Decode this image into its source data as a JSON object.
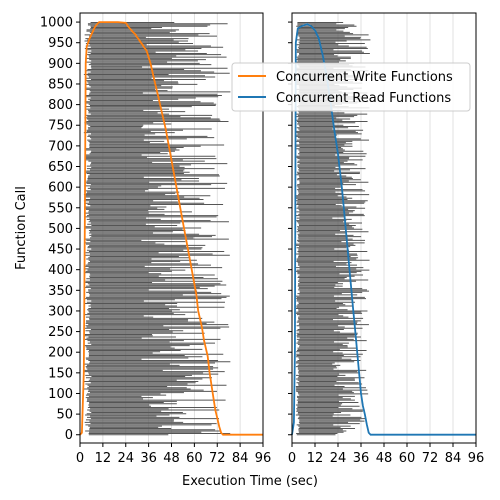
{
  "chart_data": [
    {
      "type": "line",
      "panel": "left",
      "xlabel": "Execution Time (sec)",
      "ylabel": "Function Call",
      "xlim": [
        0,
        96
      ],
      "ylim": [
        -20,
        1022
      ],
      "xticks": [
        0,
        12,
        24,
        36,
        48,
        60,
        72,
        84,
        96
      ],
      "yticks": [
        0,
        50,
        100,
        150,
        200,
        250,
        300,
        350,
        400,
        450,
        500,
        550,
        600,
        650,
        700,
        750,
        800,
        850,
        900,
        950,
        1000
      ],
      "grid": "vertical",
      "background_bars": {
        "description": "horizontal gray bars per function call",
        "color": "#555555",
        "start_time_range": [
          2,
          6
        ],
        "end_time_range": [
          32,
          79
        ],
        "count": 1000
      },
      "series": [
        {
          "name": "Concurrent Write Functions",
          "color": "#ff7f0e",
          "points": [
            [
              0,
              0
            ],
            [
              1,
              5
            ],
            [
              2,
              150
            ],
            [
              2.5,
              500
            ],
            [
              3,
              900
            ],
            [
              3.5,
              940
            ],
            [
              5,
              960
            ],
            [
              8,
              990
            ],
            [
              10,
              1000
            ],
            [
              13,
              1000
            ],
            [
              20,
              1000
            ],
            [
              24,
              998
            ],
            [
              26,
              985
            ],
            [
              29,
              970
            ],
            [
              32,
              950
            ],
            [
              35,
              930
            ],
            [
              37,
              900
            ],
            [
              39,
              860
            ],
            [
              41,
              820
            ],
            [
              43,
              780
            ],
            [
              45,
              740
            ],
            [
              47,
              690
            ],
            [
              49,
              640
            ],
            [
              51,
              590
            ],
            [
              53,
              540
            ],
            [
              55,
              490
            ],
            [
              57,
              440
            ],
            [
              59,
              390
            ],
            [
              61,
              340
            ],
            [
              62,
              300
            ],
            [
              64,
              260
            ],
            [
              65,
              230
            ],
            [
              67,
              190
            ],
            [
              68,
              150
            ],
            [
              69,
              120
            ],
            [
              70,
              90
            ],
            [
              71,
              60
            ],
            [
              72,
              40
            ],
            [
              73,
              20
            ],
            [
              74,
              5
            ],
            [
              75,
              0
            ],
            [
              96,
              0
            ]
          ]
        }
      ]
    },
    {
      "type": "line",
      "panel": "right",
      "xlabel": "",
      "ylabel": "",
      "xlim": [
        0,
        96
      ],
      "ylim": [
        -20,
        1022
      ],
      "xticks": [
        0,
        12,
        24,
        36,
        48,
        60,
        72,
        84,
        96
      ],
      "grid": "vertical",
      "background_bars": {
        "description": "horizontal gray bars per function call",
        "color": "#555555",
        "start_time_range": [
          2,
          4
        ],
        "end_time_range": [
          21,
          41
        ],
        "count": 1000
      },
      "series": [
        {
          "name": "Concurrent Read Functions",
          "color": "#1f77b4",
          "points": [
            [
              0,
              0
            ],
            [
              1,
              30
            ],
            [
              1.5,
              200
            ],
            [
              2,
              950
            ],
            [
              3,
              985
            ],
            [
              5,
              990
            ],
            [
              8,
              995
            ],
            [
              10,
              990
            ],
            [
              12,
              980
            ],
            [
              14,
              960
            ],
            [
              16,
              920
            ],
            [
              18,
              870
            ],
            [
              20,
              810
            ],
            [
              22,
              740
            ],
            [
              24,
              680
            ],
            [
              26,
              600
            ],
            [
              27,
              550
            ],
            [
              28,
              500
            ],
            [
              29,
              450
            ],
            [
              30,
              400
            ],
            [
              31,
              350
            ],
            [
              32,
              300
            ],
            [
              33,
              250
            ],
            [
              34,
              200
            ],
            [
              35,
              150
            ],
            [
              36,
              100
            ],
            [
              37,
              70
            ],
            [
              38,
              50
            ],
            [
              39,
              25
            ],
            [
              40,
              5
            ],
            [
              41,
              0
            ],
            [
              96,
              0
            ]
          ]
        }
      ]
    }
  ],
  "legend": {
    "placement": "upper-right",
    "entries": [
      {
        "label": "Concurrent Write Functions",
        "color": "#ff7f0e"
      },
      {
        "label": "Concurrent Read Functions",
        "color": "#1f77b4"
      }
    ]
  }
}
